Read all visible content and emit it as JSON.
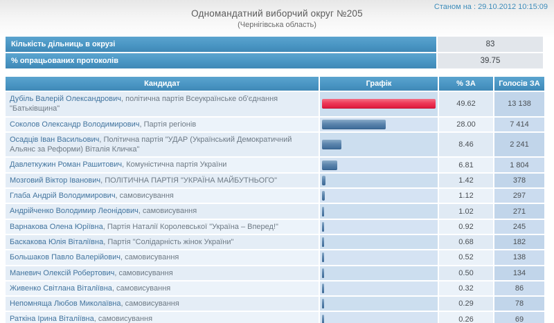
{
  "meta": {
    "timestamp": "Станом на : 29.10.2012 10:15:09"
  },
  "header": {
    "title": "Одномандатний виборчий округ №205",
    "subtitle": "(Чернігівська область)"
  },
  "stats": [
    {
      "label": "Кількість дільниць в окрузі",
      "value": "83"
    },
    {
      "label": "% опрацьованих протоколів",
      "value": "39.75"
    }
  ],
  "table": {
    "columns": [
      "Кандидат",
      "Графік",
      "% ЗА",
      "Голосів ЗА"
    ],
    "max_percent": 49.62,
    "rows": [
      {
        "name": "Дубіль Валерій Олександрович",
        "party": "політична партія Всеукраїнське об'єднання \"Батьківщина\"",
        "percent": "49.62",
        "votes": "13 138",
        "bar_color": "red"
      },
      {
        "name": "Соколов Олександр Володимирович",
        "party": "Партія регіонів",
        "percent": "28.00",
        "votes": "7 414",
        "bar_color": "blue"
      },
      {
        "name": "Осадців Іван Васильович",
        "party": "Політична партія \"УДАР (Український Демократичний Альянс за Реформи) Віталія Кличка\"",
        "percent": "8.46",
        "votes": "2 241",
        "bar_color": "blue"
      },
      {
        "name": "Давлеткужин Роман Рашитович",
        "party": "Комуністична партія України",
        "percent": "6.81",
        "votes": "1 804",
        "bar_color": "blue"
      },
      {
        "name": "Мозговий Віктор Іванович",
        "party": "ПОЛІТИЧНА ПАРТІЯ \"УКРАЇНА МАЙБУТНЬОГО\"",
        "percent": "1.42",
        "votes": "378",
        "bar_color": "blue"
      },
      {
        "name": "Глаба Андрій Володимирович",
        "party": "самовисування",
        "percent": "1.12",
        "votes": "297",
        "bar_color": "blue"
      },
      {
        "name": "Андрійченко Володимир Леонідович",
        "party": "самовисування",
        "percent": "1.02",
        "votes": "271",
        "bar_color": "blue"
      },
      {
        "name": "Варнакова Олена Юріївна",
        "party": "Партія Наталії Королевської \"Україна – Вперед!\"",
        "percent": "0.92",
        "votes": "245",
        "bar_color": "blue"
      },
      {
        "name": "Баскакова Юлія Віталіївна",
        "party": "Партія \"Солідарність жінок України\"",
        "percent": "0.68",
        "votes": "182",
        "bar_color": "blue"
      },
      {
        "name": "Большаков Павло Валерійович",
        "party": "самовисування",
        "percent": "0.52",
        "votes": "138",
        "bar_color": "blue"
      },
      {
        "name": "Маневич Олексій Робертович",
        "party": "самовисування",
        "percent": "0.50",
        "votes": "134",
        "bar_color": "blue"
      },
      {
        "name": "Живенко Світлана Віталіївна",
        "party": "самовисування",
        "percent": "0.32",
        "votes": "86",
        "bar_color": "blue"
      },
      {
        "name": "Непомняща Любов Миколаївна",
        "party": "самовисування",
        "percent": "0.29",
        "votes": "78",
        "bar_color": "blue"
      },
      {
        "name": "Раткіна Ірина Віталіївна",
        "party": "самовисування",
        "percent": "0.26",
        "votes": "69",
        "bar_color": "blue"
      }
    ]
  },
  "colors": {
    "accent_blue": "#4a96c4",
    "bar_red": "#e8274a",
    "bar_blue": "#4d7aa8",
    "link_blue": "#42749e"
  }
}
